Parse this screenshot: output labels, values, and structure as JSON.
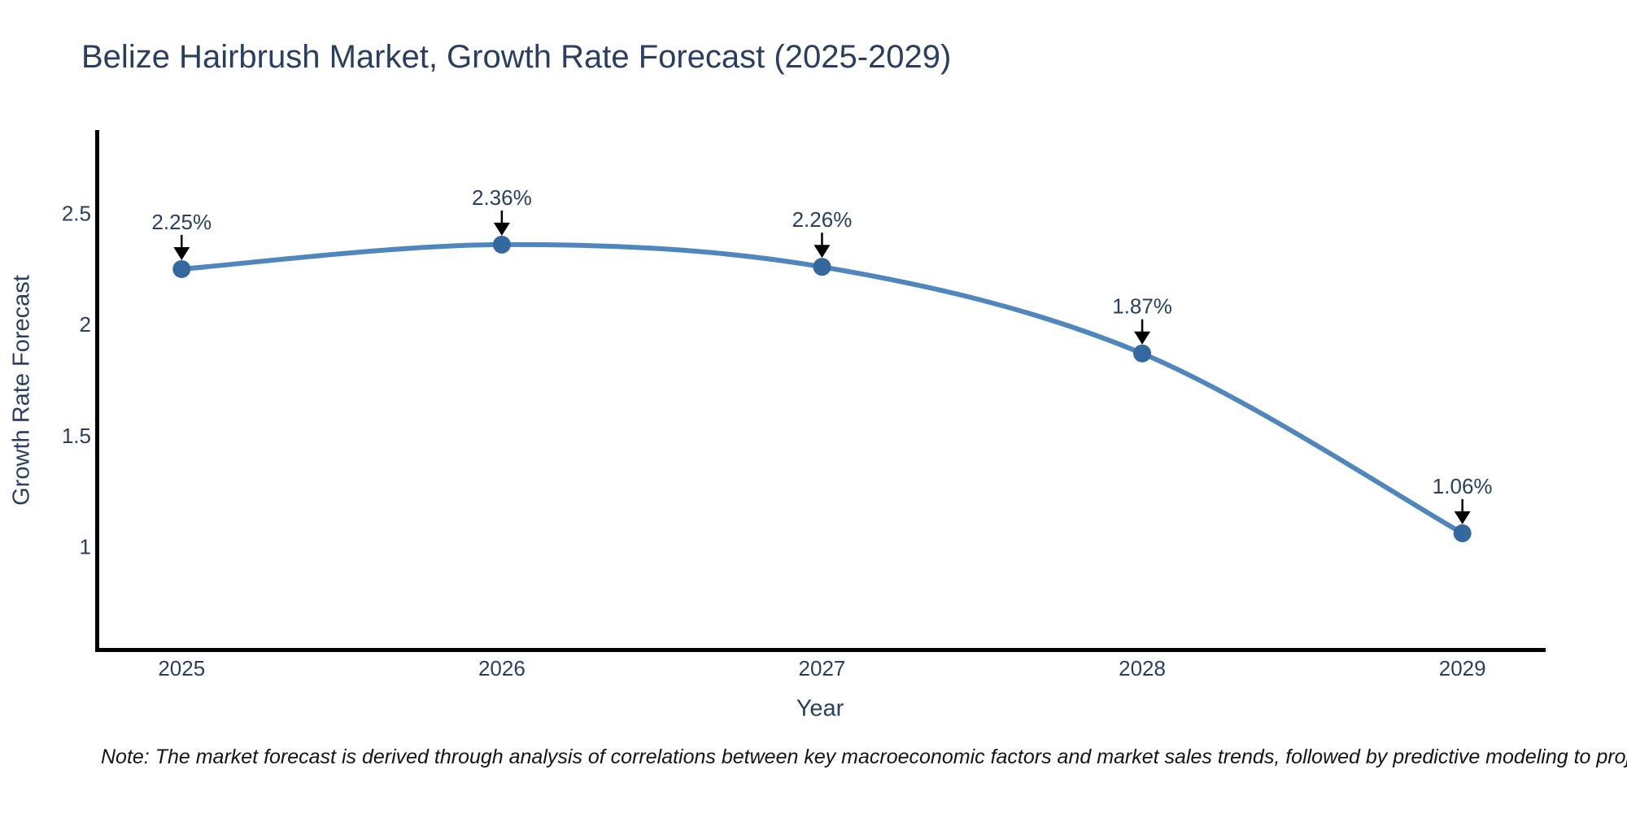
{
  "title": "Belize Hairbrush Market, Growth Rate Forecast (2025-2029)",
  "note": "Note: The market forecast is derived through analysis of correlations between key macroeconomic factors and market sales trends, followed by predictive modeling to project future sales",
  "colors": {
    "background": "#ffffff",
    "text": "#2a3f5f",
    "axis_line": "#000000",
    "line": "#4e86bd",
    "marker": "#34699f",
    "arrow": "#000000",
    "note_text": "#141414"
  },
  "chart_data": {
    "type": "line",
    "title": "Belize Hairbrush Market, Growth Rate Forecast (2025-2029)",
    "x": [
      2025,
      2026,
      2027,
      2028,
      2029
    ],
    "series": [
      {
        "name": "Growth Rate Forecast",
        "values": [
          2.25,
          2.36,
          2.26,
          1.87,
          1.06
        ]
      }
    ],
    "annotations": [
      "2.25%",
      "2.36%",
      "2.26%",
      "1.87%",
      "1.06%"
    ],
    "xlabel": "Year",
    "ylabel": "Growth Rate Forecast",
    "yticks": [
      1,
      1.5,
      2,
      2.5
    ],
    "xticks": [
      2025,
      2026,
      2027,
      2028,
      2029
    ],
    "xlim": [
      2024.73,
      2029.26
    ],
    "ylim": [
      0.536,
      2.876
    ],
    "grid": false,
    "legend": false,
    "line_shape": "spline",
    "marker_style": "circle",
    "annotation_arrows": true
  }
}
